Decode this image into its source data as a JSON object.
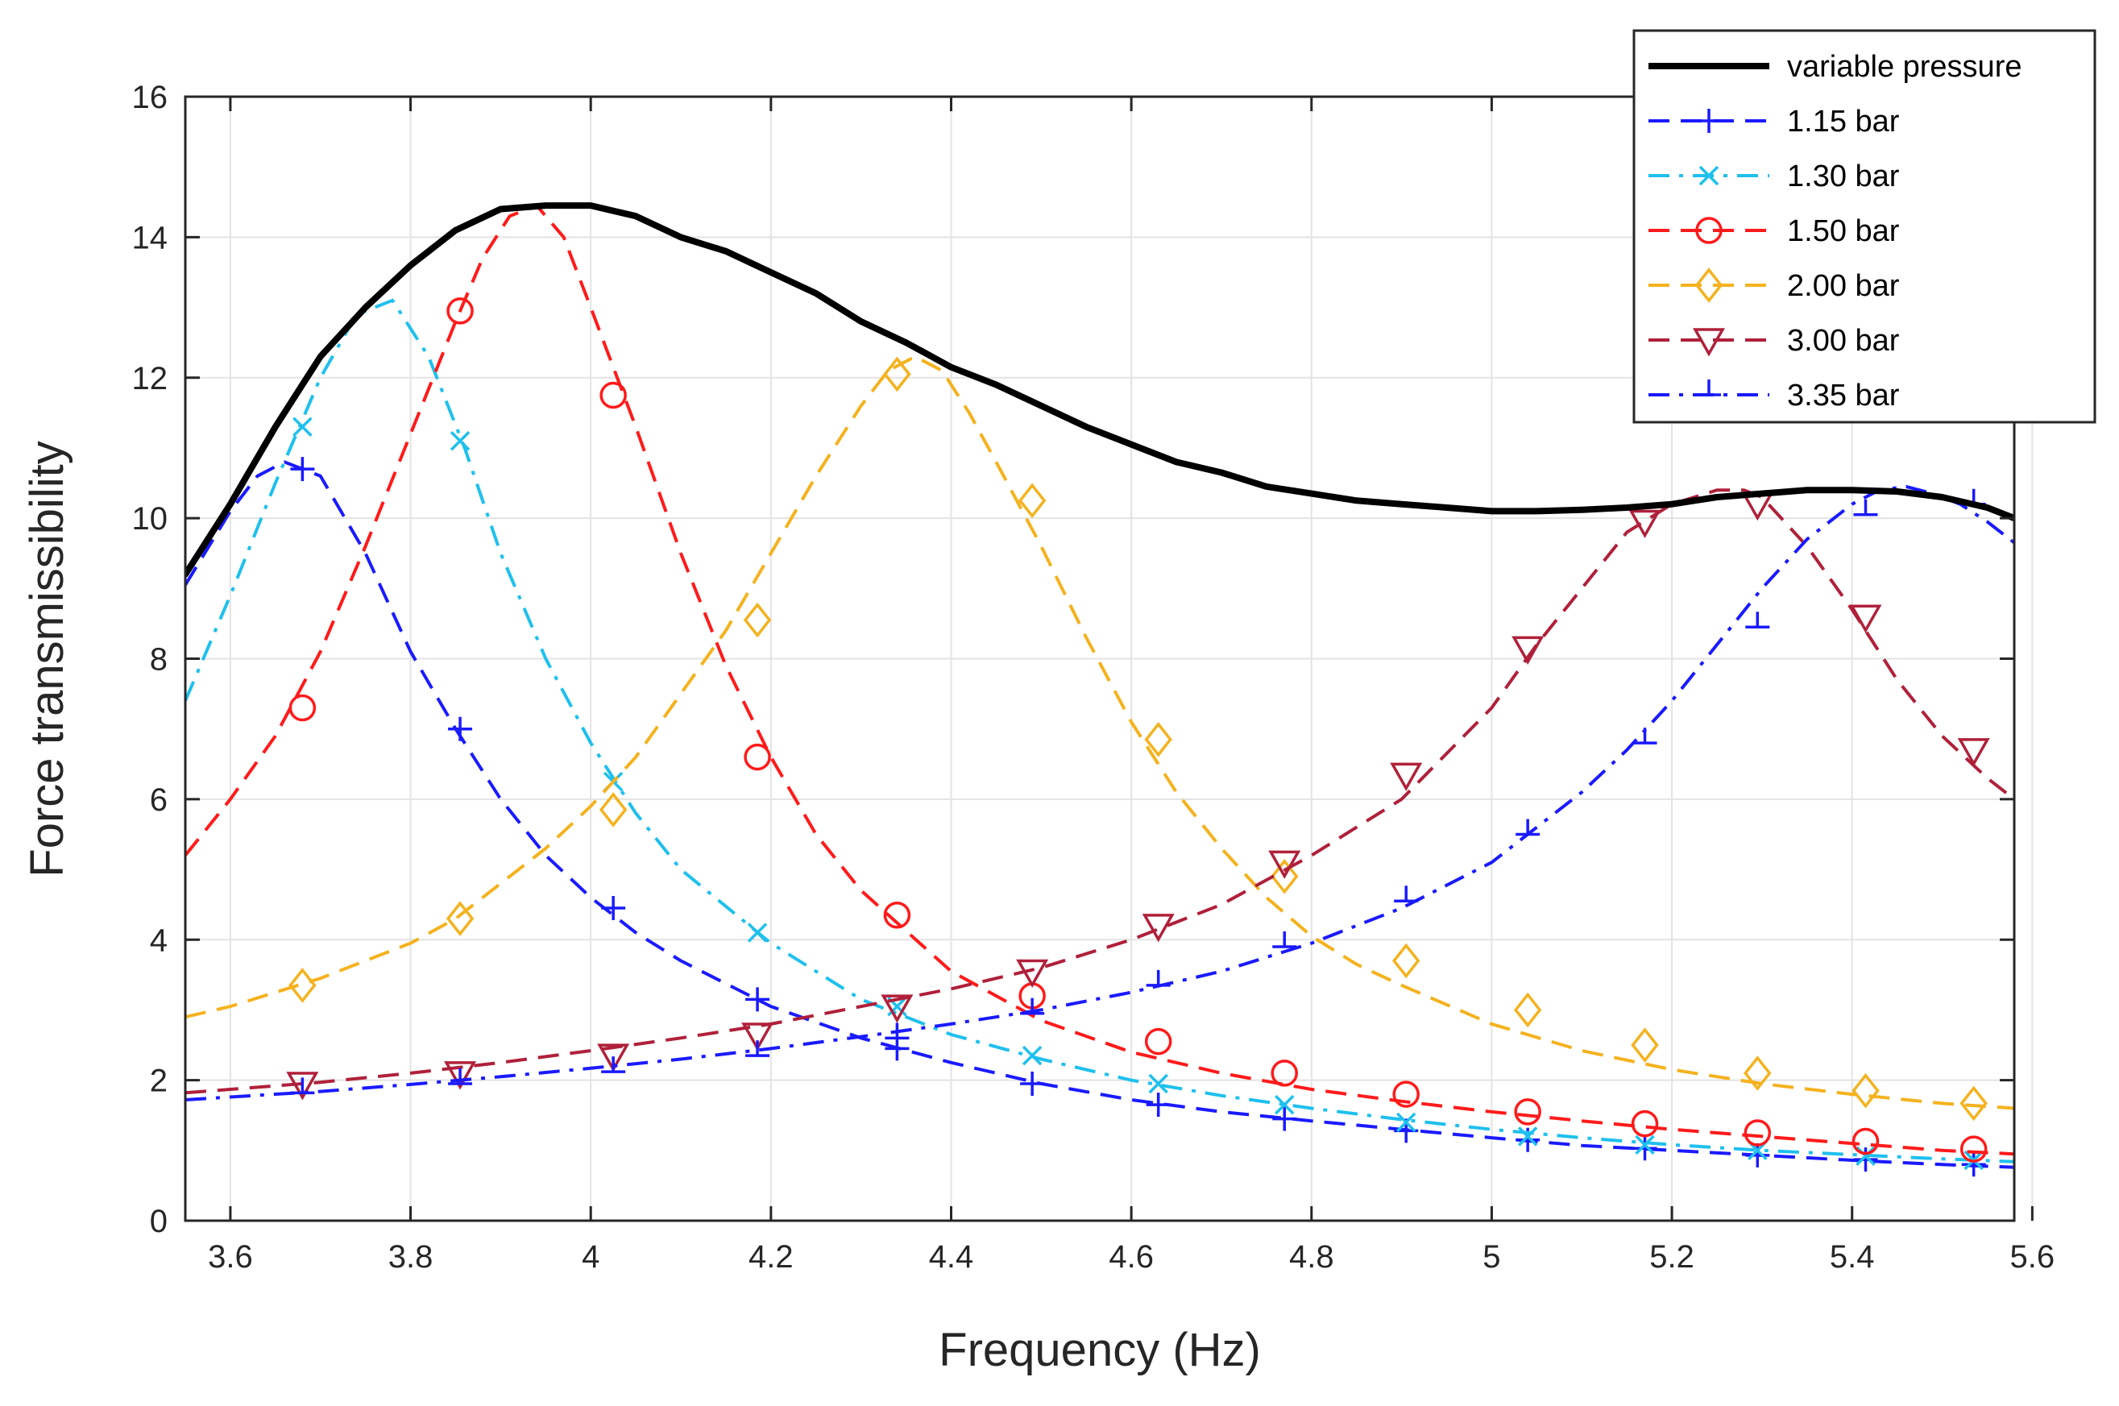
{
  "chart_data": {
    "type": "line",
    "title": "",
    "xlabel": "Frequency (Hz)",
    "ylabel": "Force transmissibility",
    "xlim": [
      3.55,
      5.58
    ],
    "ylim": [
      0,
      16
    ],
    "xticks": [
      3.6,
      3.8,
      4,
      4.2,
      4.4,
      4.6,
      4.8,
      5,
      5.2,
      5.4,
      5.6
    ],
    "xtick_labels": [
      "3.6",
      "3.8",
      "4",
      "4.2",
      "4.4",
      "4.6",
      "4.8",
      "5",
      "5.2",
      "5.4",
      "5.6"
    ],
    "yticks": [
      0,
      2,
      4,
      6,
      8,
      10,
      12,
      14,
      16
    ],
    "ytick_labels": [
      "0",
      "2",
      "4",
      "6",
      "8",
      "10",
      "12",
      "14",
      "16"
    ],
    "grid": true,
    "legend_position": "top-right",
    "series": [
      {
        "name": "variable pressure",
        "color": "#000000",
        "line_style": "solid",
        "marker": "none",
        "x": [
          3.55,
          3.6,
          3.65,
          3.7,
          3.75,
          3.8,
          3.85,
          3.9,
          3.95,
          4.0,
          4.05,
          4.1,
          4.15,
          4.2,
          4.25,
          4.3,
          4.35,
          4.4,
          4.45,
          4.5,
          4.55,
          4.6,
          4.65,
          4.7,
          4.75,
          4.8,
          4.85,
          4.9,
          4.95,
          5.0,
          5.05,
          5.1,
          5.15,
          5.2,
          5.25,
          5.3,
          5.35,
          5.4,
          5.45,
          5.5,
          5.55,
          5.58
        ],
        "y": [
          9.2,
          10.2,
          11.3,
          12.3,
          13.0,
          13.6,
          14.1,
          14.4,
          14.45,
          14.45,
          14.3,
          14.0,
          13.8,
          13.5,
          13.2,
          12.8,
          12.5,
          12.15,
          11.9,
          11.6,
          11.3,
          11.05,
          10.8,
          10.65,
          10.45,
          10.35,
          10.25,
          10.2,
          10.15,
          10.1,
          10.1,
          10.12,
          10.15,
          10.2,
          10.3,
          10.35,
          10.4,
          10.4,
          10.38,
          10.3,
          10.15,
          10.0
        ]
      },
      {
        "name": "1.15 bar",
        "color": "#1a1aff",
        "line_style": "dashed",
        "marker": "plus",
        "x": [
          3.55,
          3.6,
          3.63,
          3.66,
          3.7,
          3.75,
          3.8,
          3.85,
          3.9,
          3.95,
          4.0,
          4.05,
          4.1,
          4.2,
          4.3,
          4.4,
          4.5,
          4.6,
          4.7,
          4.8,
          4.9,
          5.0,
          5.1,
          5.2,
          5.3,
          5.4,
          5.5,
          5.58
        ],
        "y": [
          9.05,
          10.1,
          10.6,
          10.8,
          10.6,
          9.5,
          8.1,
          7.0,
          6.0,
          5.2,
          4.6,
          4.1,
          3.7,
          3.05,
          2.6,
          2.25,
          1.95,
          1.72,
          1.55,
          1.42,
          1.3,
          1.18,
          1.07,
          1.0,
          0.93,
          0.86,
          0.8,
          0.76
        ],
        "markers_x": [
          3.68,
          3.855,
          4.025,
          4.185,
          4.34,
          4.49,
          4.63,
          4.77,
          4.905,
          5.04,
          5.17,
          5.295,
          5.415,
          5.535
        ],
        "markers_y": [
          10.7,
          7.0,
          4.45,
          3.15,
          2.45,
          1.95,
          1.65,
          1.45,
          1.28,
          1.15,
          1.03,
          0.93,
          0.87,
          0.8
        ]
      },
      {
        "name": "1.30 bar",
        "color": "#1ec0ee",
        "line_style": "dashdot",
        "marker": "x",
        "x": [
          3.55,
          3.6,
          3.65,
          3.7,
          3.74,
          3.78,
          3.82,
          3.86,
          3.9,
          3.95,
          4.0,
          4.05,
          4.1,
          4.2,
          4.3,
          4.4,
          4.5,
          4.6,
          4.7,
          4.8,
          4.9,
          5.0,
          5.1,
          5.2,
          5.3,
          5.4,
          5.5,
          5.58
        ],
        "y": [
          7.4,
          8.9,
          10.5,
          12.0,
          12.9,
          13.1,
          12.3,
          11.0,
          9.5,
          8.0,
          6.8,
          5.8,
          5.0,
          3.95,
          3.15,
          2.65,
          2.3,
          2.0,
          1.78,
          1.6,
          1.44,
          1.3,
          1.18,
          1.08,
          1.0,
          0.94,
          0.88,
          0.84
        ],
        "markers_x": [
          3.68,
          3.855,
          4.025,
          4.185,
          4.34,
          4.49,
          4.63,
          4.77,
          4.905,
          5.04,
          5.17,
          5.295,
          5.415,
          5.535
        ],
        "markers_y": [
          11.3,
          11.1,
          6.25,
          4.1,
          3.05,
          2.35,
          1.95,
          1.65,
          1.4,
          1.2,
          1.08,
          1.0,
          0.92,
          0.86
        ]
      },
      {
        "name": "1.50 bar",
        "color": "#ff1a1a",
        "line_style": "dashed",
        "marker": "circle",
        "x": [
          3.55,
          3.6,
          3.65,
          3.7,
          3.75,
          3.8,
          3.85,
          3.88,
          3.91,
          3.94,
          3.97,
          4.0,
          4.05,
          4.1,
          4.15,
          4.2,
          4.25,
          4.3,
          4.4,
          4.5,
          4.6,
          4.7,
          4.8,
          4.9,
          5.0,
          5.1,
          5.2,
          5.3,
          5.4,
          5.5,
          5.58
        ],
        "y": [
          5.2,
          6.0,
          6.9,
          8.1,
          9.6,
          11.2,
          12.8,
          13.7,
          14.3,
          14.45,
          14.0,
          13.0,
          11.3,
          9.5,
          7.9,
          6.6,
          5.5,
          4.7,
          3.55,
          2.85,
          2.4,
          2.1,
          1.87,
          1.7,
          1.55,
          1.42,
          1.3,
          1.2,
          1.1,
          1.0,
          0.95
        ],
        "markers_x": [
          3.68,
          3.855,
          4.025,
          4.185,
          4.34,
          4.49,
          4.63,
          4.77,
          4.905,
          5.04,
          5.17,
          5.295,
          5.415,
          5.535
        ],
        "markers_y": [
          7.3,
          12.95,
          11.75,
          6.6,
          4.35,
          3.2,
          2.55,
          2.1,
          1.8,
          1.55,
          1.38,
          1.25,
          1.13,
          1.02
        ]
      },
      {
        "name": "2.00 bar",
        "color": "#f5b21e",
        "line_style": "dashed",
        "marker": "diamond",
        "x": [
          3.55,
          3.6,
          3.65,
          3.7,
          3.75,
          3.8,
          3.85,
          3.9,
          3.95,
          4.0,
          4.05,
          4.1,
          4.15,
          4.2,
          4.25,
          4.3,
          4.33,
          4.36,
          4.39,
          4.42,
          4.45,
          4.5,
          4.55,
          4.6,
          4.65,
          4.7,
          4.75,
          4.8,
          4.85,
          4.9,
          5.0,
          5.1,
          5.2,
          5.3,
          5.4,
          5.5,
          5.58
        ],
        "y": [
          2.9,
          3.05,
          3.25,
          3.45,
          3.7,
          3.95,
          4.3,
          4.8,
          5.3,
          5.9,
          6.6,
          7.5,
          8.4,
          9.5,
          10.6,
          11.6,
          12.1,
          12.3,
          12.1,
          11.5,
          10.8,
          9.6,
          8.3,
          7.1,
          6.1,
          5.3,
          4.6,
          4.05,
          3.65,
          3.35,
          2.8,
          2.42,
          2.15,
          1.95,
          1.8,
          1.67,
          1.6
        ],
        "markers_x": [
          3.68,
          3.855,
          4.025,
          4.185,
          4.34,
          4.49,
          4.63,
          4.77,
          4.905,
          5.04,
          5.17,
          5.295,
          5.415,
          5.535
        ],
        "markers_y": [
          3.35,
          4.3,
          5.85,
          8.55,
          12.05,
          10.25,
          6.85,
          4.9,
          3.7,
          3.0,
          2.5,
          2.1,
          1.85,
          1.67
        ]
      },
      {
        "name": "3.00 bar",
        "color": "#b0203a",
        "line_style": "dashed",
        "marker": "triangle-down",
        "x": [
          3.55,
          3.6,
          3.7,
          3.8,
          3.9,
          4.0,
          4.1,
          4.2,
          4.3,
          4.4,
          4.5,
          4.6,
          4.7,
          4.8,
          4.9,
          5.0,
          5.05,
          5.1,
          5.15,
          5.2,
          5.25,
          5.28,
          5.3,
          5.35,
          5.4,
          5.45,
          5.5,
          5.55,
          5.58
        ],
        "y": [
          1.82,
          1.87,
          1.97,
          2.1,
          2.25,
          2.42,
          2.6,
          2.8,
          3.05,
          3.3,
          3.6,
          4.0,
          4.5,
          5.2,
          6.0,
          7.3,
          8.2,
          9.0,
          9.8,
          10.2,
          10.4,
          10.4,
          10.3,
          9.6,
          8.7,
          7.7,
          6.9,
          6.3,
          6.0
        ],
        "markers_x": [
          3.68,
          3.855,
          4.025,
          4.185,
          4.34,
          4.49,
          4.63,
          4.77,
          4.905,
          5.04,
          5.17,
          5.295,
          5.415,
          5.535
        ],
        "markers_y": [
          1.95,
          2.1,
          2.35,
          2.65,
          3.05,
          3.55,
          4.2,
          5.1,
          6.35,
          8.15,
          9.95,
          10.2,
          8.6,
          6.7
        ]
      },
      {
        "name": "3.35 bar",
        "color": "#1a1aff",
        "line_style": "dashdot",
        "marker": "tick",
        "x": [
          3.55,
          3.6,
          3.7,
          3.8,
          3.9,
          4.0,
          4.1,
          4.2,
          4.3,
          4.4,
          4.5,
          4.6,
          4.7,
          4.8,
          4.9,
          5.0,
          5.05,
          5.1,
          5.15,
          5.2,
          5.25,
          5.3,
          5.35,
          5.4,
          5.43,
          5.46,
          5.49,
          5.52,
          5.55,
          5.58
        ],
        "y": [
          1.72,
          1.76,
          1.84,
          1.94,
          2.05,
          2.17,
          2.3,
          2.45,
          2.62,
          2.8,
          3.0,
          3.25,
          3.55,
          3.95,
          4.45,
          5.1,
          5.6,
          6.1,
          6.7,
          7.4,
          8.2,
          9.0,
          9.7,
          10.2,
          10.4,
          10.45,
          10.35,
          10.2,
          9.95,
          9.65
        ],
        "markers_x": [
          3.68,
          3.855,
          4.025,
          4.185,
          4.34,
          4.49,
          4.63,
          4.77,
          4.905,
          5.04,
          5.17,
          5.295,
          5.415,
          5.535
        ],
        "markers_y": [
          1.82,
          1.95,
          2.12,
          2.35,
          2.6,
          2.95,
          3.35,
          3.9,
          4.55,
          5.5,
          6.8,
          8.45,
          10.05,
          10.2
        ]
      }
    ]
  }
}
